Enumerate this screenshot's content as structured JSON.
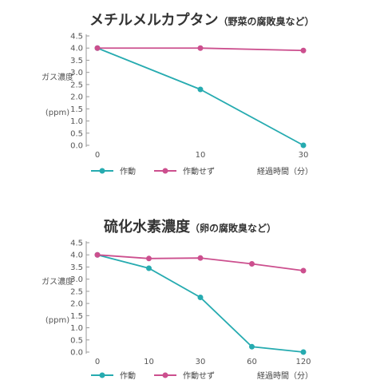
{
  "colors": {
    "active": "#26abb0",
    "inactive": "#cc4f8e",
    "axis": "#999999"
  },
  "chart_data": [
    {
      "type": "line",
      "title": "メチルメルカプタン",
      "subtitle": "（野菜の腐敗臭など）",
      "ylabel": [
        "ガス濃度",
        "(ppm)"
      ],
      "xlabel": "経過時間（分）",
      "categories": [
        "0",
        "10",
        "30"
      ],
      "y_ticks": [
        "4.5",
        "4.0",
        "3.5",
        "3.0",
        "2.5",
        "2.0",
        "1.5",
        "1.0",
        "0.5",
        "0.0"
      ],
      "ylim": [
        0,
        4.5
      ],
      "series": [
        {
          "name": "作動",
          "values": [
            4.0,
            2.3,
            0.0
          ]
        },
        {
          "name": "作動せず",
          "values": [
            4.0,
            4.0,
            3.9
          ]
        }
      ]
    },
    {
      "type": "line",
      "title": "硫化水素濃度",
      "subtitle": "（卵の腐敗臭など）",
      "ylabel": [
        "ガス濃度",
        "(ppm)"
      ],
      "xlabel": "経過時間（分）",
      "categories": [
        "0",
        "10",
        "30",
        "60",
        "120"
      ],
      "y_ticks": [
        "4.5",
        "4.0",
        "3.5",
        "3.0",
        "2.5",
        "2.0",
        "1.5",
        "1.0",
        "0.5",
        "0.0"
      ],
      "ylim": [
        0,
        4.5
      ],
      "series": [
        {
          "name": "作動",
          "values": [
            4.0,
            3.45,
            2.25,
            0.22,
            0.0
          ]
        },
        {
          "name": "作動せず",
          "values": [
            4.0,
            3.85,
            3.87,
            3.63,
            3.35
          ]
        }
      ]
    }
  ]
}
